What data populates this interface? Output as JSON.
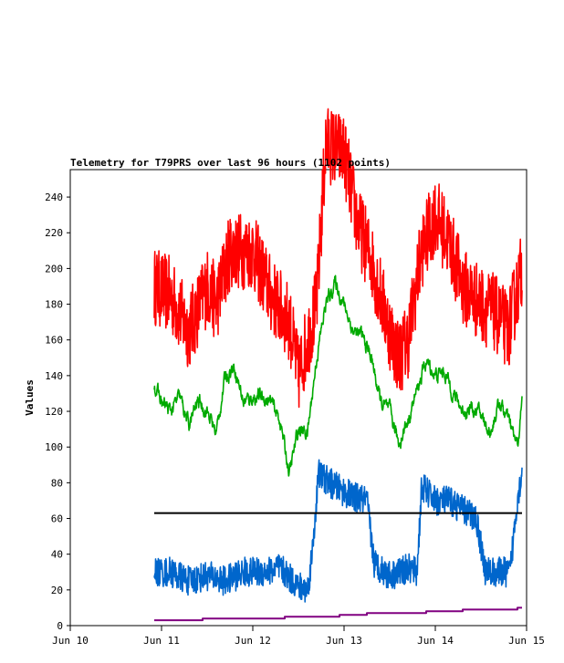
{
  "chart_data": {
    "type": "line",
    "title": "Telemetry for T79PRS over last 96 hours (1102 points)",
    "ylabel": "Values",
    "xlabel": "",
    "x_ticks": [
      "Jun 10",
      "Jun 11",
      "Jun 12",
      "Jun 13",
      "Jun 14",
      "Jun 15"
    ],
    "y_ticks": [
      0,
      20,
      40,
      60,
      80,
      100,
      120,
      140,
      160,
      180,
      200,
      220,
      240
    ],
    "ylim": [
      0,
      255
    ],
    "x_range_days": [
      10,
      15
    ],
    "x_unit": "day of June",
    "grid": false,
    "legend": "none",
    "series": [
      {
        "color": "#ff0000",
        "noise": 22,
        "points": [
          [
            10.92,
            190
          ],
          [
            11.1,
            185
          ],
          [
            11.3,
            165
          ],
          [
            11.5,
            190
          ],
          [
            11.6,
            180
          ],
          [
            11.75,
            210
          ],
          [
            12.0,
            210
          ],
          [
            12.2,
            185
          ],
          [
            12.4,
            170
          ],
          [
            12.5,
            140
          ],
          [
            12.6,
            160
          ],
          [
            12.7,
            180
          ],
          [
            12.8,
            270
          ],
          [
            13.0,
            265
          ],
          [
            13.15,
            225
          ],
          [
            13.3,
            205
          ],
          [
            13.5,
            165
          ],
          [
            13.6,
            150
          ],
          [
            13.7,
            160
          ],
          [
            13.85,
            210
          ],
          [
            14.0,
            230
          ],
          [
            14.15,
            215
          ],
          [
            14.3,
            190
          ],
          [
            14.5,
            180
          ],
          [
            14.65,
            175
          ],
          [
            14.8,
            165
          ],
          [
            14.95,
            200
          ]
        ]
      },
      {
        "color": "#00aa00",
        "noise": 3,
        "points": [
          [
            10.92,
            135
          ],
          [
            11.0,
            125
          ],
          [
            11.1,
            120
          ],
          [
            11.2,
            128
          ],
          [
            11.3,
            112
          ],
          [
            11.4,
            126
          ],
          [
            11.5,
            120
          ],
          [
            11.6,
            108
          ],
          [
            11.7,
            140
          ],
          [
            11.8,
            145
          ],
          [
            11.9,
            125
          ],
          [
            12.0,
            128
          ],
          [
            12.1,
            128
          ],
          [
            12.2,
            125
          ],
          [
            12.3,
            115
          ],
          [
            12.4,
            85
          ],
          [
            12.5,
            110
          ],
          [
            12.6,
            108
          ],
          [
            12.7,
            150
          ],
          [
            12.8,
            180
          ],
          [
            12.9,
            192
          ],
          [
            13.0,
            180
          ],
          [
            13.1,
            165
          ],
          [
            13.2,
            162
          ],
          [
            13.3,
            150
          ],
          [
            13.4,
            125
          ],
          [
            13.5,
            120
          ],
          [
            13.6,
            102
          ],
          [
            13.7,
            115
          ],
          [
            13.8,
            132
          ],
          [
            13.9,
            148
          ],
          [
            14.0,
            140
          ],
          [
            14.1,
            142
          ],
          [
            14.2,
            130
          ],
          [
            14.3,
            120
          ],
          [
            14.4,
            122
          ],
          [
            14.5,
            118
          ],
          [
            14.6,
            108
          ],
          [
            14.7,
            125
          ],
          [
            14.8,
            115
          ],
          [
            14.9,
            100
          ],
          [
            14.95,
            125
          ]
        ]
      },
      {
        "color": "#0066cc",
        "noise": 6,
        "points": [
          [
            10.92,
            30
          ],
          [
            11.1,
            30
          ],
          [
            11.3,
            25
          ],
          [
            11.5,
            28
          ],
          [
            11.7,
            25
          ],
          [
            11.9,
            30
          ],
          [
            12.1,
            30
          ],
          [
            12.3,
            32
          ],
          [
            12.5,
            22
          ],
          [
            12.6,
            20
          ],
          [
            12.65,
            40
          ],
          [
            12.72,
            85
          ],
          [
            12.9,
            78
          ],
          [
            13.1,
            72
          ],
          [
            13.25,
            70
          ],
          [
            13.33,
            35
          ],
          [
            13.5,
            28
          ],
          [
            13.7,
            32
          ],
          [
            13.8,
            30
          ],
          [
            13.85,
            78
          ],
          [
            14.0,
            70
          ],
          [
            14.15,
            70
          ],
          [
            14.3,
            65
          ],
          [
            14.45,
            60
          ],
          [
            14.55,
            30
          ],
          [
            14.7,
            30
          ],
          [
            14.82,
            30
          ],
          [
            14.9,
            72
          ],
          [
            14.95,
            85
          ]
        ]
      },
      {
        "color": "#000000",
        "noise": 0,
        "points": [
          [
            10.92,
            63
          ],
          [
            14.95,
            63
          ]
        ]
      },
      {
        "color": "#800080",
        "noise": 0,
        "step": true,
        "points": [
          [
            10.92,
            3
          ],
          [
            11.45,
            4
          ],
          [
            12.35,
            5
          ],
          [
            12.95,
            6
          ],
          [
            13.25,
            7
          ],
          [
            13.9,
            8
          ],
          [
            14.3,
            9
          ],
          [
            14.9,
            10
          ],
          [
            14.95,
            10
          ]
        ]
      }
    ]
  }
}
